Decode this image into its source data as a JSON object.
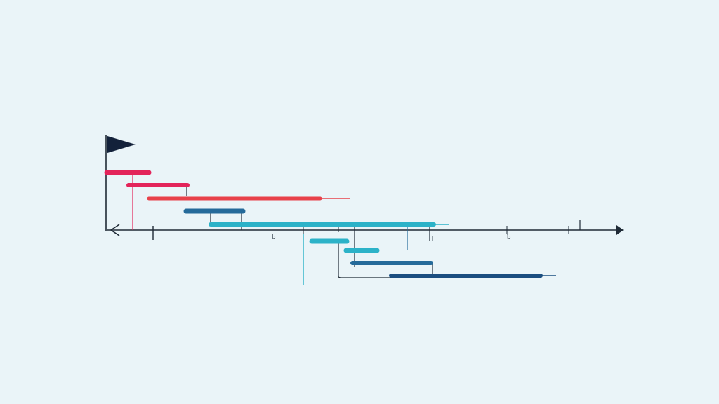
{
  "colors": {
    "background": "#eaf4f8",
    "ink": "#1f2a36",
    "flag": "#13213a",
    "magenta": "#e3245a",
    "red": "#e8414a",
    "teal": "#2cb2c8",
    "steel_blue": "#256a9a",
    "navy": "#1b4e80"
  },
  "icons": {
    "flag": "flag-icon",
    "axis_left": "arrow-left-icon",
    "axis_right": "arrow-right-icon"
  },
  "axis": {
    "tick_labels": [
      "b",
      "b"
    ]
  }
}
